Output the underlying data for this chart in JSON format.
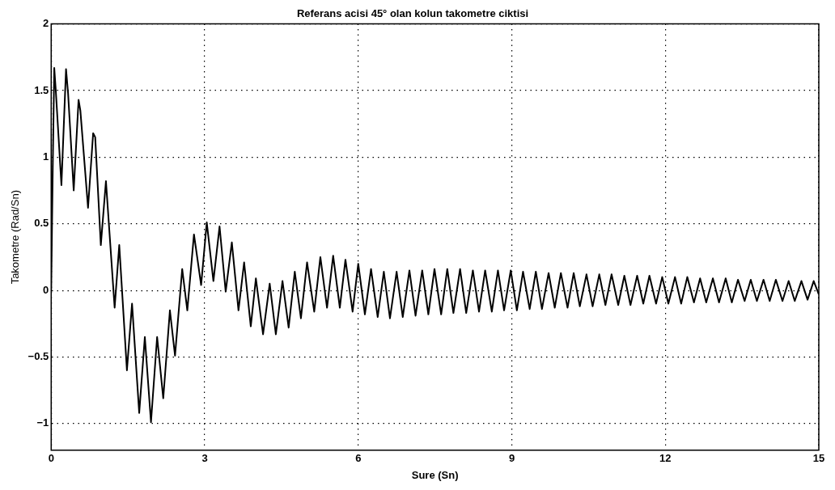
{
  "chart_data": {
    "type": "line",
    "title": "Referans acisi 45° olan kolun takometre ciktisi",
    "xlabel": "Sure (Sn)",
    "ylabel": "Takometre (Rad/Sn)",
    "xlim": [
      0,
      15
    ],
    "xticks": [
      0,
      3,
      6,
      9,
      12,
      15
    ],
    "ylim": [
      -1.2,
      2
    ],
    "yticks": [
      -1,
      -0.5,
      0,
      0.5,
      1,
      1.5,
      2
    ],
    "grid": true,
    "line_style": "solid",
    "marker": "none",
    "legend": false,
    "series": [
      {
        "color": "#000000",
        "x": [
          0,
          0.03,
          0.06,
          0.09,
          0.2,
          0.29,
          0.33,
          0.44,
          0.535,
          0.57,
          0.72,
          0.82,
          0.86,
          0.97,
          1.07,
          1.24,
          1.33,
          1.48,
          1.58,
          1.72,
          1.83,
          1.95,
          2.07,
          2.19,
          2.32,
          2.42,
          2.56,
          2.66,
          2.79,
          2.93,
          3.04,
          3.17,
          3.29,
          3.41,
          3.53,
          3.66,
          3.77,
          3.9,
          4.0,
          4.14,
          4.27,
          4.39,
          4.52,
          4.64,
          4.76,
          4.88,
          5.0,
          5.14,
          5.26,
          5.39,
          5.51,
          5.64,
          5.75,
          5.89,
          6.0,
          6.13,
          6.25,
          6.38,
          6.5,
          6.62,
          6.75,
          6.87,
          7.0,
          7.12,
          7.25,
          7.37,
          7.49,
          7.62,
          7.74,
          7.86,
          7.99,
          8.11,
          8.24,
          8.36,
          8.48,
          8.61,
          8.73,
          8.85,
          8.98,
          9.1,
          9.22,
          9.35,
          9.47,
          9.59,
          9.72,
          9.84,
          9.96,
          10.09,
          10.21,
          10.33,
          10.46,
          10.58,
          10.71,
          10.83,
          10.95,
          11.08,
          11.2,
          11.32,
          11.45,
          11.57,
          11.69,
          11.82,
          11.94,
          12.06,
          12.19,
          12.31,
          12.43,
          12.56,
          12.68,
          12.8,
          12.93,
          13.05,
          13.18,
          13.3,
          13.42,
          13.55,
          13.67,
          13.79,
          13.92,
          14.04,
          14.16,
          14.29,
          14.41,
          14.53,
          14.66,
          14.78,
          14.9,
          15
        ],
        "values": [
          0,
          0.9,
          1.67,
          1.5,
          0.79,
          1.66,
          1.48,
          0.75,
          1.43,
          1.35,
          0.62,
          1.18,
          1.15,
          0.34,
          0.82,
          -0.13,
          0.34,
          -0.6,
          -0.1,
          -0.92,
          -0.35,
          -0.99,
          -0.35,
          -0.81,
          -0.15,
          -0.49,
          0.16,
          -0.15,
          0.42,
          0.04,
          0.51,
          0.07,
          0.48,
          -0.01,
          0.36,
          -0.15,
          0.21,
          -0.27,
          0.09,
          -0.33,
          0.05,
          -0.33,
          0.07,
          -0.28,
          0.14,
          -0.21,
          0.21,
          -0.16,
          0.25,
          -0.13,
          0.26,
          -0.13,
          0.23,
          -0.16,
          0.2,
          -0.18,
          0.16,
          -0.2,
          0.14,
          -0.21,
          0.14,
          -0.2,
          0.15,
          -0.19,
          0.15,
          -0.18,
          0.16,
          -0.18,
          0.16,
          -0.17,
          0.16,
          -0.17,
          0.15,
          -0.16,
          0.15,
          -0.16,
          0.15,
          -0.15,
          0.15,
          -0.15,
          0.14,
          -0.14,
          0.14,
          -0.14,
          0.13,
          -0.13,
          0.13,
          -0.13,
          0.13,
          -0.12,
          0.12,
          -0.12,
          0.12,
          -0.11,
          0.12,
          -0.11,
          0.11,
          -0.11,
          0.11,
          -0.1,
          0.11,
          -0.1,
          0.1,
          -0.1,
          0.1,
          -0.1,
          0.1,
          -0.09,
          0.09,
          -0.09,
          0.09,
          -0.09,
          0.09,
          -0.09,
          0.08,
          -0.08,
          0.08,
          -0.08,
          0.08,
          -0.08,
          0.08,
          -0.08,
          0.07,
          -0.08,
          0.07,
          -0.07,
          0.07,
          -0.03
        ]
      }
    ]
  }
}
